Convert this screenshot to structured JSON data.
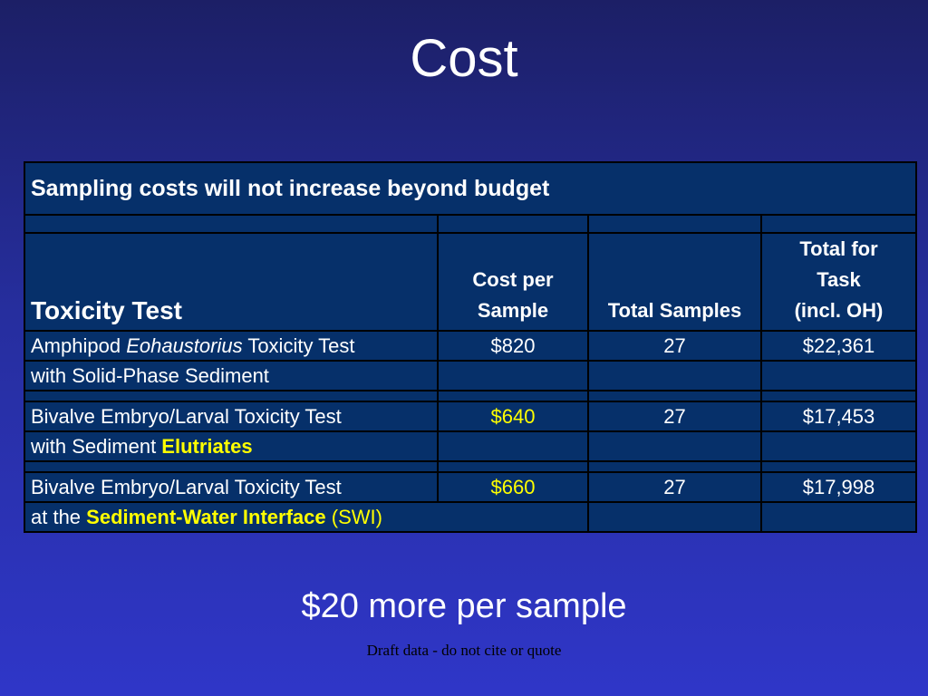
{
  "slide": {
    "title": "Cost",
    "summary": "$20 more per sample",
    "note": "Draft data - do not cite or quote"
  },
  "table": {
    "caption": "Sampling costs will not increase beyond budget",
    "headers": {
      "test": "Toxicity Test",
      "cost_line1": "Cost per",
      "cost_line2": "Sample",
      "samples": "Total Samples",
      "total_line1": "Total for",
      "total_line2": "Task",
      "total_line3": "(incl. OH)"
    },
    "rows": [
      {
        "line1_part1": "Amphipod ",
        "line1_italic": "Eohaustorius",
        "line1_part2": " Toxicity Test",
        "line2": "with Solid-Phase Sediment",
        "cost": "$820",
        "samples": "27",
        "total": "$22,361"
      },
      {
        "line1": "Bivalve Embryo/Larval Toxicity Test",
        "line2_prefix": "with Sediment ",
        "line2_highlight": "Elutriates",
        "cost": "$640",
        "samples": "27",
        "total": "$17,453"
      },
      {
        "line1": "Bivalve Embryo/Larval Toxicity Test",
        "line2_prefix": "at the ",
        "line2_highlight": "Sediment-Water Interface",
        "line2_suffix": " (SWI)",
        "cost": "$660",
        "samples": "27",
        "total": "$17,998"
      }
    ]
  },
  "colors": {
    "background_top": "#1c1f66",
    "background_bottom": "#2f36c8",
    "table_fill": "#06306a",
    "highlight": "#ffff00"
  }
}
